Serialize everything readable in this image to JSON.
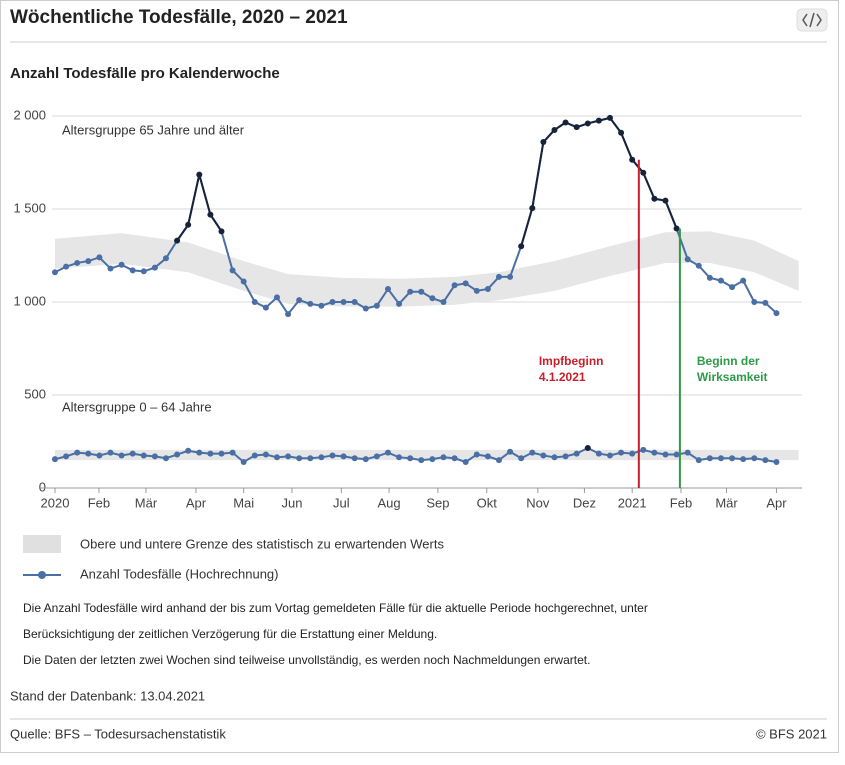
{
  "header": {
    "title": "Wöchentliche Todesfälle, 2020 – 2021"
  },
  "chart_data": {
    "type": "line",
    "title": "Anzahl Todesfälle pro Kalenderwoche",
    "x": [
      0,
      1,
      2,
      3,
      4,
      5,
      6,
      7,
      8,
      9,
      10,
      11,
      12,
      13,
      14,
      15,
      16,
      17,
      18,
      19,
      20,
      21,
      22,
      23,
      24,
      25,
      26,
      27,
      28,
      29,
      30,
      31,
      32,
      33,
      34,
      35,
      36,
      37,
      38,
      39,
      40,
      41,
      42,
      43,
      44,
      45,
      46,
      47,
      48,
      49,
      50,
      51,
      52,
      53,
      54,
      55,
      56,
      57,
      58,
      59,
      60,
      61,
      62,
      63,
      64,
      65
    ],
    "xlim": [
      -1.35,
      67.3
    ],
    "xticks": [
      {
        "value": 0,
        "label": "2020"
      },
      {
        "value": 3.96,
        "label": "Feb"
      },
      {
        "value": 8.2,
        "label": "Mär"
      },
      {
        "value": 12.7,
        "label": "Apr"
      },
      {
        "value": 17.0,
        "label": "Mai"
      },
      {
        "value": 21.35,
        "label": "Jun"
      },
      {
        "value": 25.8,
        "label": "Jul"
      },
      {
        "value": 30.1,
        "label": "Aug"
      },
      {
        "value": 34.5,
        "label": "Sep"
      },
      {
        "value": 38.9,
        "label": "Okt"
      },
      {
        "value": 43.5,
        "label": "Nov"
      },
      {
        "value": 47.7,
        "label": "Dez"
      },
      {
        "value": 52.0,
        "label": "2021"
      },
      {
        "value": 56.4,
        "label": "Feb"
      },
      {
        "value": 60.5,
        "label": "Mär"
      },
      {
        "value": 65.0,
        "label": "Apr"
      }
    ],
    "ylim": [
      0,
      2000
    ],
    "yticks": [
      0,
      500,
      {
        "value": 1000,
        "label": "1 000"
      },
      {
        "value": 1500,
        "label": "1 500"
      },
      {
        "value": 2000,
        "label": "2 000"
      }
    ],
    "grid": true,
    "series": [
      {
        "name": "Altersgruppe 65 Jahre und älter",
        "color": "#4a6fa5",
        "excess_color": "#17233a",
        "values": [
          1160,
          1190,
          1210,
          1220,
          1240,
          1180,
          1200,
          1170,
          1165,
          1185,
          1235,
          1330,
          1415,
          1685,
          1470,
          1380,
          1170,
          1110,
          1000,
          970,
          1025,
          935,
          1010,
          990,
          980,
          1000,
          1000,
          1000,
          965,
          980,
          1070,
          990,
          1055,
          1055,
          1020,
          1000,
          1090,
          1100,
          1060,
          1070,
          1135,
          1135,
          1300,
          1505,
          1860,
          1925,
          1965,
          1940,
          1960,
          1975,
          1990,
          1910,
          1765,
          1695,
          1555,
          1545,
          1395,
          1230,
          1195,
          1130,
          1115,
          1080,
          1115,
          1000,
          995,
          940
        ]
      },
      {
        "name": "Altersgruppe 0 – 64 Jahre",
        "color": "#4a6fa5",
        "excess_color": "#17233a",
        "values": [
          155,
          170,
          190,
          185,
          175,
          190,
          175,
          185,
          175,
          170,
          160,
          180,
          200,
          190,
          185,
          185,
          190,
          140,
          175,
          180,
          165,
          170,
          160,
          160,
          165,
          175,
          170,
          160,
          155,
          170,
          190,
          165,
          160,
          150,
          155,
          165,
          160,
          140,
          180,
          170,
          150,
          195,
          160,
          190,
          175,
          165,
          170,
          185,
          215,
          185,
          175,
          190,
          185,
          205,
          190,
          180,
          180,
          190,
          150,
          160,
          160,
          160,
          155,
          160,
          150,
          140
        ]
      }
    ],
    "bands": [
      {
        "color": "#e6e6e6",
        "x": [
          0,
          6,
          12,
          17,
          21,
          26,
          31,
          36,
          40,
          45,
          50,
          55,
          59,
          63,
          67
        ],
        "upper": [
          1340,
          1370,
          1320,
          1220,
          1150,
          1130,
          1125,
          1135,
          1160,
          1220,
          1300,
          1375,
          1380,
          1330,
          1220
        ],
        "lower": [
          1180,
          1205,
          1160,
          1060,
          990,
          975,
          975,
          985,
          1010,
          1060,
          1140,
          1210,
          1210,
          1160,
          1060
        ]
      },
      {
        "color": "#e6e6e6",
        "x": [
          0,
          33,
          67
        ],
        "upper": [
          205,
          205,
          205
        ],
        "lower": [
          150,
          150,
          150
        ]
      }
    ],
    "annotations": [
      {
        "lines": [
          "Impfbeginn",
          "4.1.2021"
        ],
        "x": 52.6,
        "y_top": 1765,
        "color": "#c8202a"
      },
      {
        "lines": [
          "Beginn der",
          "Wirksamkeit"
        ],
        "x": 56.3,
        "y_top": 1395,
        "color": "#2e9a47"
      }
    ],
    "legend": [
      "Obere und untere Grenze des statistisch zu erwartenden Werts",
      "Anzahl Todesfälle (Hochrechnung)"
    ]
  },
  "notes": [
    "Die Anzahl Todesfälle wird anhand der bis zum Vortag gemeldeten Fälle für die aktuelle Periode hochgerechnet, unter",
    "Berücksichtigung der zeitlichen Verzögerung für die Erstattung einer Meldung.",
    "Die Daten der letzten zwei Wochen sind teilweise unvollständig, es werden noch Nachmeldungen erwartet."
  ],
  "stand": "Stand der Datenbank: 13.04.2021",
  "footer": {
    "source": "Quelle: BFS – Todesursachenstatistik",
    "copyright": "© BFS 2021"
  }
}
